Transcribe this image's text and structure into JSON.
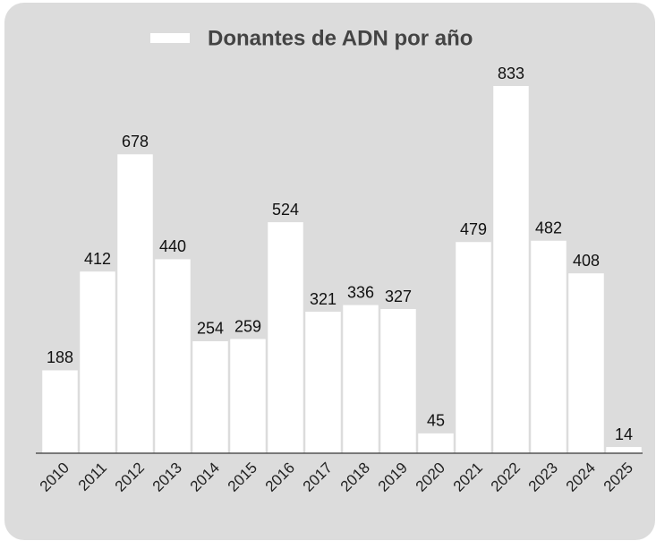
{
  "chart_data": {
    "type": "bar",
    "categories": [
      "2010",
      "2011",
      "2012",
      "2013",
      "2014",
      "2015",
      "2016",
      "2017",
      "2018",
      "2019",
      "2020",
      "2021",
      "2022",
      "2023",
      "2024",
      "2025"
    ],
    "series": [
      {
        "name": "Donantes de ADN por año",
        "color": "#ffffff",
        "values": [
          188,
          412,
          678,
          440,
          254,
          259,
          524,
          321,
          336,
          327,
          45,
          479,
          833,
          482,
          408,
          14
        ]
      }
    ],
    "legend": "top"
  }
}
